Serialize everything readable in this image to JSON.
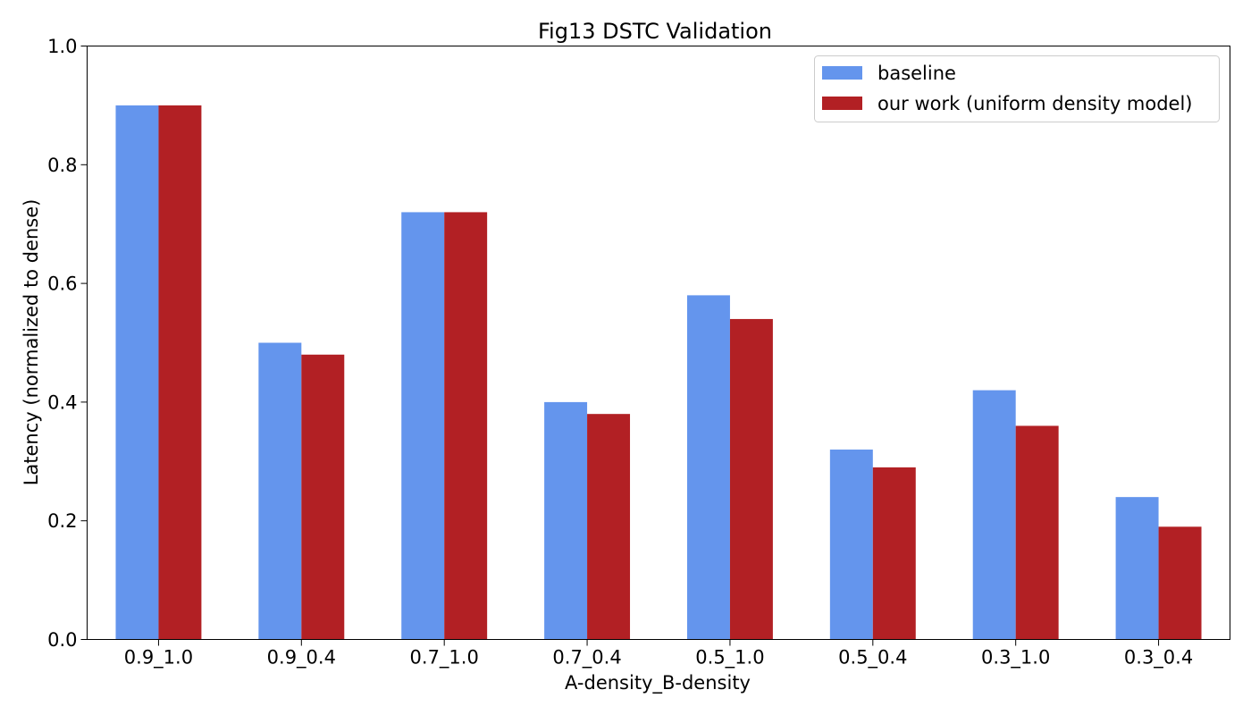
{
  "chart_data": {
    "type": "bar",
    "title": "Fig13 DSTC Validation",
    "xlabel": "A-density_B-density",
    "ylabel": "Latency (normalized to dense)",
    "ylim": [
      0,
      1.0
    ],
    "yticks": [
      "0.0",
      "0.2",
      "0.4",
      "0.6",
      "0.8",
      "1.0"
    ],
    "categories": [
      "0.9_1.0",
      "0.9_0.4",
      "0.7_1.0",
      "0.7_0.4",
      "0.5_1.0",
      "0.5_0.4",
      "0.3_1.0",
      "0.3_0.4"
    ],
    "series": [
      {
        "name": "baseline",
        "color": "#6495ED",
        "values": [
          0.9,
          0.5,
          0.72,
          0.4,
          0.58,
          0.32,
          0.42,
          0.24
        ]
      },
      {
        "name": "our work (uniform density model)",
        "color": "#B22024",
        "values": [
          0.9,
          0.48,
          0.72,
          0.38,
          0.54,
          0.29,
          0.36,
          0.19
        ]
      }
    ],
    "grid": false,
    "legend_position": "top-right"
  }
}
